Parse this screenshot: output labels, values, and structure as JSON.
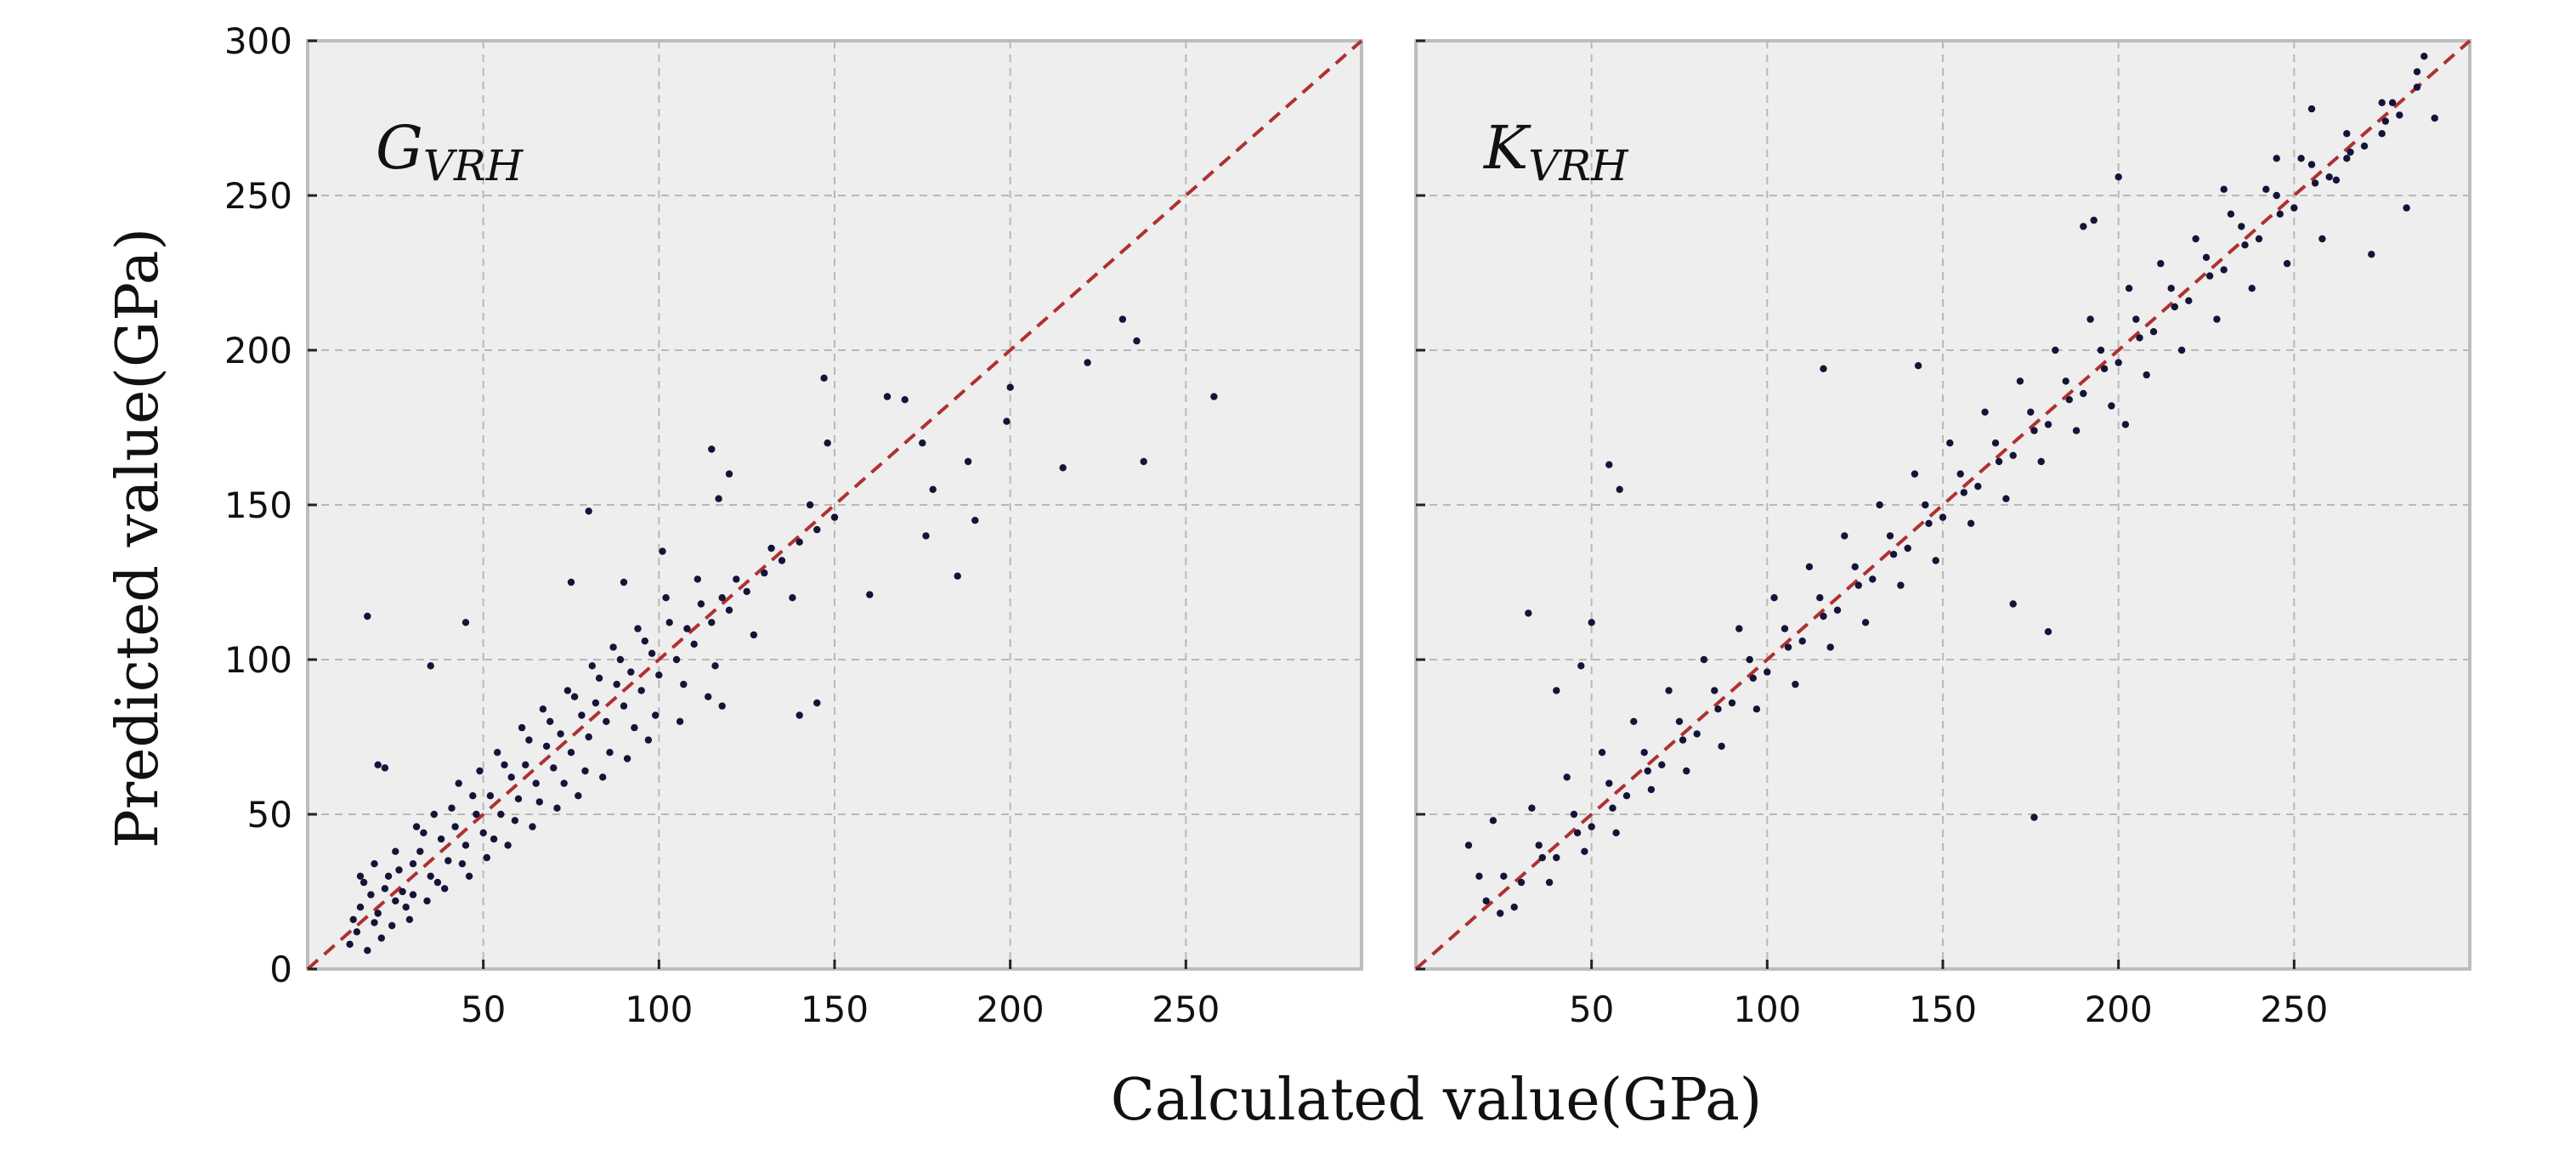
{
  "figure": {
    "xlabel": "Calculated value(GPa)",
    "ylabel": "Predicted value(GPa)"
  },
  "chart_data": [
    {
      "type": "scatter",
      "panel_label": {
        "main": "G",
        "sub": "VRH"
      },
      "xlim": [
        0,
        300
      ],
      "ylim": [
        0,
        300
      ],
      "xticks": [
        50,
        100,
        150,
        200,
        250
      ],
      "yticks": [
        0,
        50,
        100,
        150,
        200,
        250,
        300
      ],
      "grid": true,
      "reference_line": "y = x",
      "colors": {
        "points": "#14143a",
        "reference_line": "#b03030",
        "background": "#eeeeee"
      },
      "points": [
        [
          15,
          20
        ],
        [
          18,
          24
        ],
        [
          20,
          18
        ],
        [
          22,
          26
        ],
        [
          25,
          22
        ],
        [
          14,
          12
        ],
        [
          16,
          28
        ],
        [
          19,
          15
        ],
        [
          23,
          30
        ],
        [
          27,
          25
        ],
        [
          30,
          34
        ],
        [
          28,
          20
        ],
        [
          32,
          38
        ],
        [
          35,
          30
        ],
        [
          38,
          42
        ],
        [
          40,
          35
        ],
        [
          42,
          46
        ],
        [
          45,
          40
        ],
        [
          48,
          50
        ],
        [
          50,
          44
        ],
        [
          52,
          56
        ],
        [
          55,
          50
        ],
        [
          58,
          62
        ],
        [
          60,
          55
        ],
        [
          62,
          66
        ],
        [
          65,
          60
        ],
        [
          68,
          72
        ],
        [
          70,
          65
        ],
        [
          72,
          76
        ],
        [
          75,
          70
        ],
        [
          78,
          82
        ],
        [
          80,
          75
        ],
        [
          82,
          86
        ],
        [
          85,
          80
        ],
        [
          88,
          92
        ],
        [
          90,
          85
        ],
        [
          92,
          96
        ],
        [
          95,
          90
        ],
        [
          98,
          102
        ],
        [
          100,
          95
        ],
        [
          105,
          100
        ],
        [
          108,
          110
        ],
        [
          110,
          105
        ],
        [
          115,
          112
        ],
        [
          118,
          120
        ],
        [
          120,
          116
        ],
        [
          125,
          122
        ],
        [
          130,
          128
        ],
        [
          135,
          132
        ],
        [
          140,
          138
        ],
        [
          145,
          142
        ],
        [
          150,
          146
        ],
        [
          17,
          114
        ],
        [
          20,
          66
        ],
        [
          22,
          65
        ],
        [
          35,
          98
        ],
        [
          45,
          112
        ],
        [
          80,
          148
        ],
        [
          75,
          125
        ],
        [
          90,
          125
        ],
        [
          101,
          135
        ],
        [
          115,
          168
        ],
        [
          117,
          152
        ],
        [
          120,
          160
        ],
        [
          118,
          85
        ],
        [
          140,
          82
        ],
        [
          145,
          86
        ],
        [
          147,
          191
        ],
        [
          148,
          170
        ],
        [
          160,
          121
        ],
        [
          165,
          185
        ],
        [
          170,
          184
        ],
        [
          175,
          170
        ],
        [
          176,
          140
        ],
        [
          178,
          155
        ],
        [
          185,
          127
        ],
        [
          188,
          164
        ],
        [
          190,
          145
        ],
        [
          200,
          188
        ],
        [
          199,
          177
        ],
        [
          215,
          162
        ],
        [
          222,
          196
        ],
        [
          232,
          210
        ],
        [
          236,
          203
        ],
        [
          238,
          164
        ],
        [
          258,
          185
        ],
        [
          25,
          38
        ],
        [
          30,
          24
        ],
        [
          33,
          44
        ],
        [
          37,
          28
        ],
        [
          41,
          52
        ],
        [
          44,
          34
        ],
        [
          47,
          56
        ],
        [
          53,
          42
        ],
        [
          56,
          66
        ],
        [
          59,
          48
        ],
        [
          63,
          74
        ],
        [
          66,
          54
        ],
        [
          69,
          80
        ],
        [
          73,
          60
        ],
        [
          76,
          88
        ],
        [
          79,
          64
        ],
        [
          83,
          94
        ],
        [
          86,
          70
        ],
        [
          89,
          100
        ],
        [
          93,
          78
        ],
        [
          96,
          106
        ],
        [
          99,
          82
        ],
        [
          103,
          112
        ],
        [
          107,
          92
        ],
        [
          112,
          118
        ],
        [
          116,
          98
        ],
        [
          122,
          126
        ],
        [
          127,
          108
        ],
        [
          132,
          136
        ],
        [
          138,
          120
        ],
        [
          143,
          150
        ],
        [
          12,
          8
        ],
        [
          13,
          16
        ],
        [
          15,
          30
        ],
        [
          17,
          6
        ],
        [
          19,
          34
        ],
        [
          21,
          10
        ],
        [
          24,
          14
        ],
        [
          26,
          32
        ],
        [
          29,
          16
        ],
        [
          31,
          46
        ],
        [
          34,
          22
        ],
        [
          36,
          50
        ],
        [
          39,
          26
        ],
        [
          43,
          60
        ],
        [
          46,
          30
        ],
        [
          49,
          64
        ],
        [
          51,
          36
        ],
        [
          54,
          70
        ],
        [
          57,
          40
        ],
        [
          61,
          78
        ],
        [
          64,
          46
        ],
        [
          67,
          84
        ],
        [
          71,
          52
        ],
        [
          74,
          90
        ],
        [
          77,
          56
        ],
        [
          81,
          98
        ],
        [
          84,
          62
        ],
        [
          87,
          104
        ],
        [
          91,
          68
        ],
        [
          94,
          110
        ],
        [
          97,
          74
        ],
        [
          102,
          120
        ],
        [
          106,
          80
        ],
        [
          111,
          126
        ],
        [
          114,
          88
        ]
      ]
    },
    {
      "type": "scatter",
      "panel_label": {
        "main": "K",
        "sub": "VRH"
      },
      "xlim": [
        0,
        300
      ],
      "ylim": [
        0,
        300
      ],
      "xticks": [
        50,
        100,
        150,
        200,
        250
      ],
      "yticks": [
        0,
        50,
        100,
        150,
        200,
        250,
        300
      ],
      "grid": true,
      "reference_line": "y = x",
      "colors": {
        "points": "#14143a",
        "reference_line": "#b03030",
        "background": "#eeeeee"
      },
      "points": [
        [
          20,
          22
        ],
        [
          25,
          30
        ],
        [
          30,
          28
        ],
        [
          35,
          40
        ],
        [
          40,
          36
        ],
        [
          45,
          50
        ],
        [
          50,
          46
        ],
        [
          55,
          60
        ],
        [
          60,
          56
        ],
        [
          65,
          70
        ],
        [
          70,
          66
        ],
        [
          75,
          80
        ],
        [
          80,
          76
        ],
        [
          85,
          90
        ],
        [
          90,
          86
        ],
        [
          95,
          100
        ],
        [
          100,
          96
        ],
        [
          105,
          110
        ],
        [
          110,
          106
        ],
        [
          115,
          120
        ],
        [
          120,
          116
        ],
        [
          125,
          130
        ],
        [
          130,
          126
        ],
        [
          135,
          140
        ],
        [
          140,
          136
        ],
        [
          145,
          150
        ],
        [
          150,
          146
        ],
        [
          155,
          160
        ],
        [
          160,
          156
        ],
        [
          165,
          170
        ],
        [
          170,
          166
        ],
        [
          175,
          180
        ],
        [
          180,
          176
        ],
        [
          185,
          190
        ],
        [
          190,
          186
        ],
        [
          195,
          200
        ],
        [
          200,
          196
        ],
        [
          205,
          210
        ],
        [
          210,
          206
        ],
        [
          215,
          220
        ],
        [
          220,
          216
        ],
        [
          225,
          230
        ],
        [
          230,
          226
        ],
        [
          235,
          240
        ],
        [
          240,
          236
        ],
        [
          245,
          250
        ],
        [
          250,
          246
        ],
        [
          255,
          260
        ],
        [
          260,
          256
        ],
        [
          265,
          270
        ],
        [
          270,
          266
        ],
        [
          275,
          280
        ],
        [
          280,
          276
        ],
        [
          285,
          290
        ],
        [
          290,
          275
        ],
        [
          32,
          115
        ],
        [
          50,
          112
        ],
        [
          55,
          163
        ],
        [
          58,
          155
        ],
        [
          47,
          98
        ],
        [
          40,
          90
        ],
        [
          176,
          49
        ],
        [
          180,
          109
        ],
        [
          170,
          118
        ],
        [
          116,
          194
        ],
        [
          143,
          195
        ],
        [
          190,
          240
        ],
        [
          193,
          242
        ],
        [
          200,
          256
        ],
        [
          202,
          176
        ],
        [
          230,
          252
        ],
        [
          245,
          262
        ],
        [
          255,
          278
        ],
        [
          262,
          255
        ],
        [
          272,
          231
        ],
        [
          278,
          280
        ],
        [
          282,
          246
        ],
        [
          287,
          295
        ],
        [
          15,
          40
        ],
        [
          18,
          30
        ],
        [
          22,
          48
        ],
        [
          28,
          20
        ],
        [
          33,
          52
        ],
        [
          38,
          28
        ],
        [
          43,
          62
        ],
        [
          48,
          38
        ],
        [
          53,
          70
        ],
        [
          57,
          44
        ],
        [
          62,
          80
        ],
        [
          67,
          58
        ],
        [
          72,
          90
        ],
        [
          77,
          64
        ],
        [
          82,
          100
        ],
        [
          87,
          72
        ],
        [
          92,
          110
        ],
        [
          97,
          84
        ],
        [
          102,
          120
        ],
        [
          108,
          92
        ],
        [
          112,
          130
        ],
        [
          118,
          104
        ],
        [
          122,
          140
        ],
        [
          128,
          112
        ],
        [
          132,
          150
        ],
        [
          138,
          124
        ],
        [
          142,
          160
        ],
        [
          148,
          132
        ],
        [
          152,
          170
        ],
        [
          158,
          144
        ],
        [
          162,
          180
        ],
        [
          168,
          152
        ],
        [
          172,
          190
        ],
        [
          178,
          164
        ],
        [
          182,
          200
        ],
        [
          188,
          174
        ],
        [
          192,
          210
        ],
        [
          198,
          182
        ],
        [
          203,
          220
        ],
        [
          208,
          192
        ],
        [
          212,
          228
        ],
        [
          218,
          200
        ],
        [
          222,
          236
        ],
        [
          228,
          210
        ],
        [
          232,
          244
        ],
        [
          238,
          220
        ],
        [
          242,
          252
        ],
        [
          248,
          228
        ],
        [
          252,
          262
        ],
        [
          258,
          236
        ],
        [
          265,
          262
        ],
        [
          275,
          270
        ],
        [
          285,
          285
        ],
        [
          24,
          18
        ],
        [
          36,
          36
        ],
        [
          46,
          44
        ],
        [
          56,
          52
        ],
        [
          66,
          64
        ],
        [
          76,
          74
        ],
        [
          86,
          84
        ],
        [
          96,
          94
        ],
        [
          106,
          104
        ],
        [
          116,
          114
        ],
        [
          126,
          124
        ],
        [
          136,
          134
        ],
        [
          146,
          144
        ],
        [
          156,
          154
        ],
        [
          166,
          164
        ],
        [
          176,
          174
        ],
        [
          186,
          184
        ],
        [
          196,
          194
        ],
        [
          206,
          204
        ],
        [
          216,
          214
        ],
        [
          226,
          224
        ],
        [
          236,
          234
        ],
        [
          246,
          244
        ],
        [
          256,
          254
        ],
        [
          266,
          264
        ],
        [
          276,
          274
        ]
      ]
    }
  ]
}
